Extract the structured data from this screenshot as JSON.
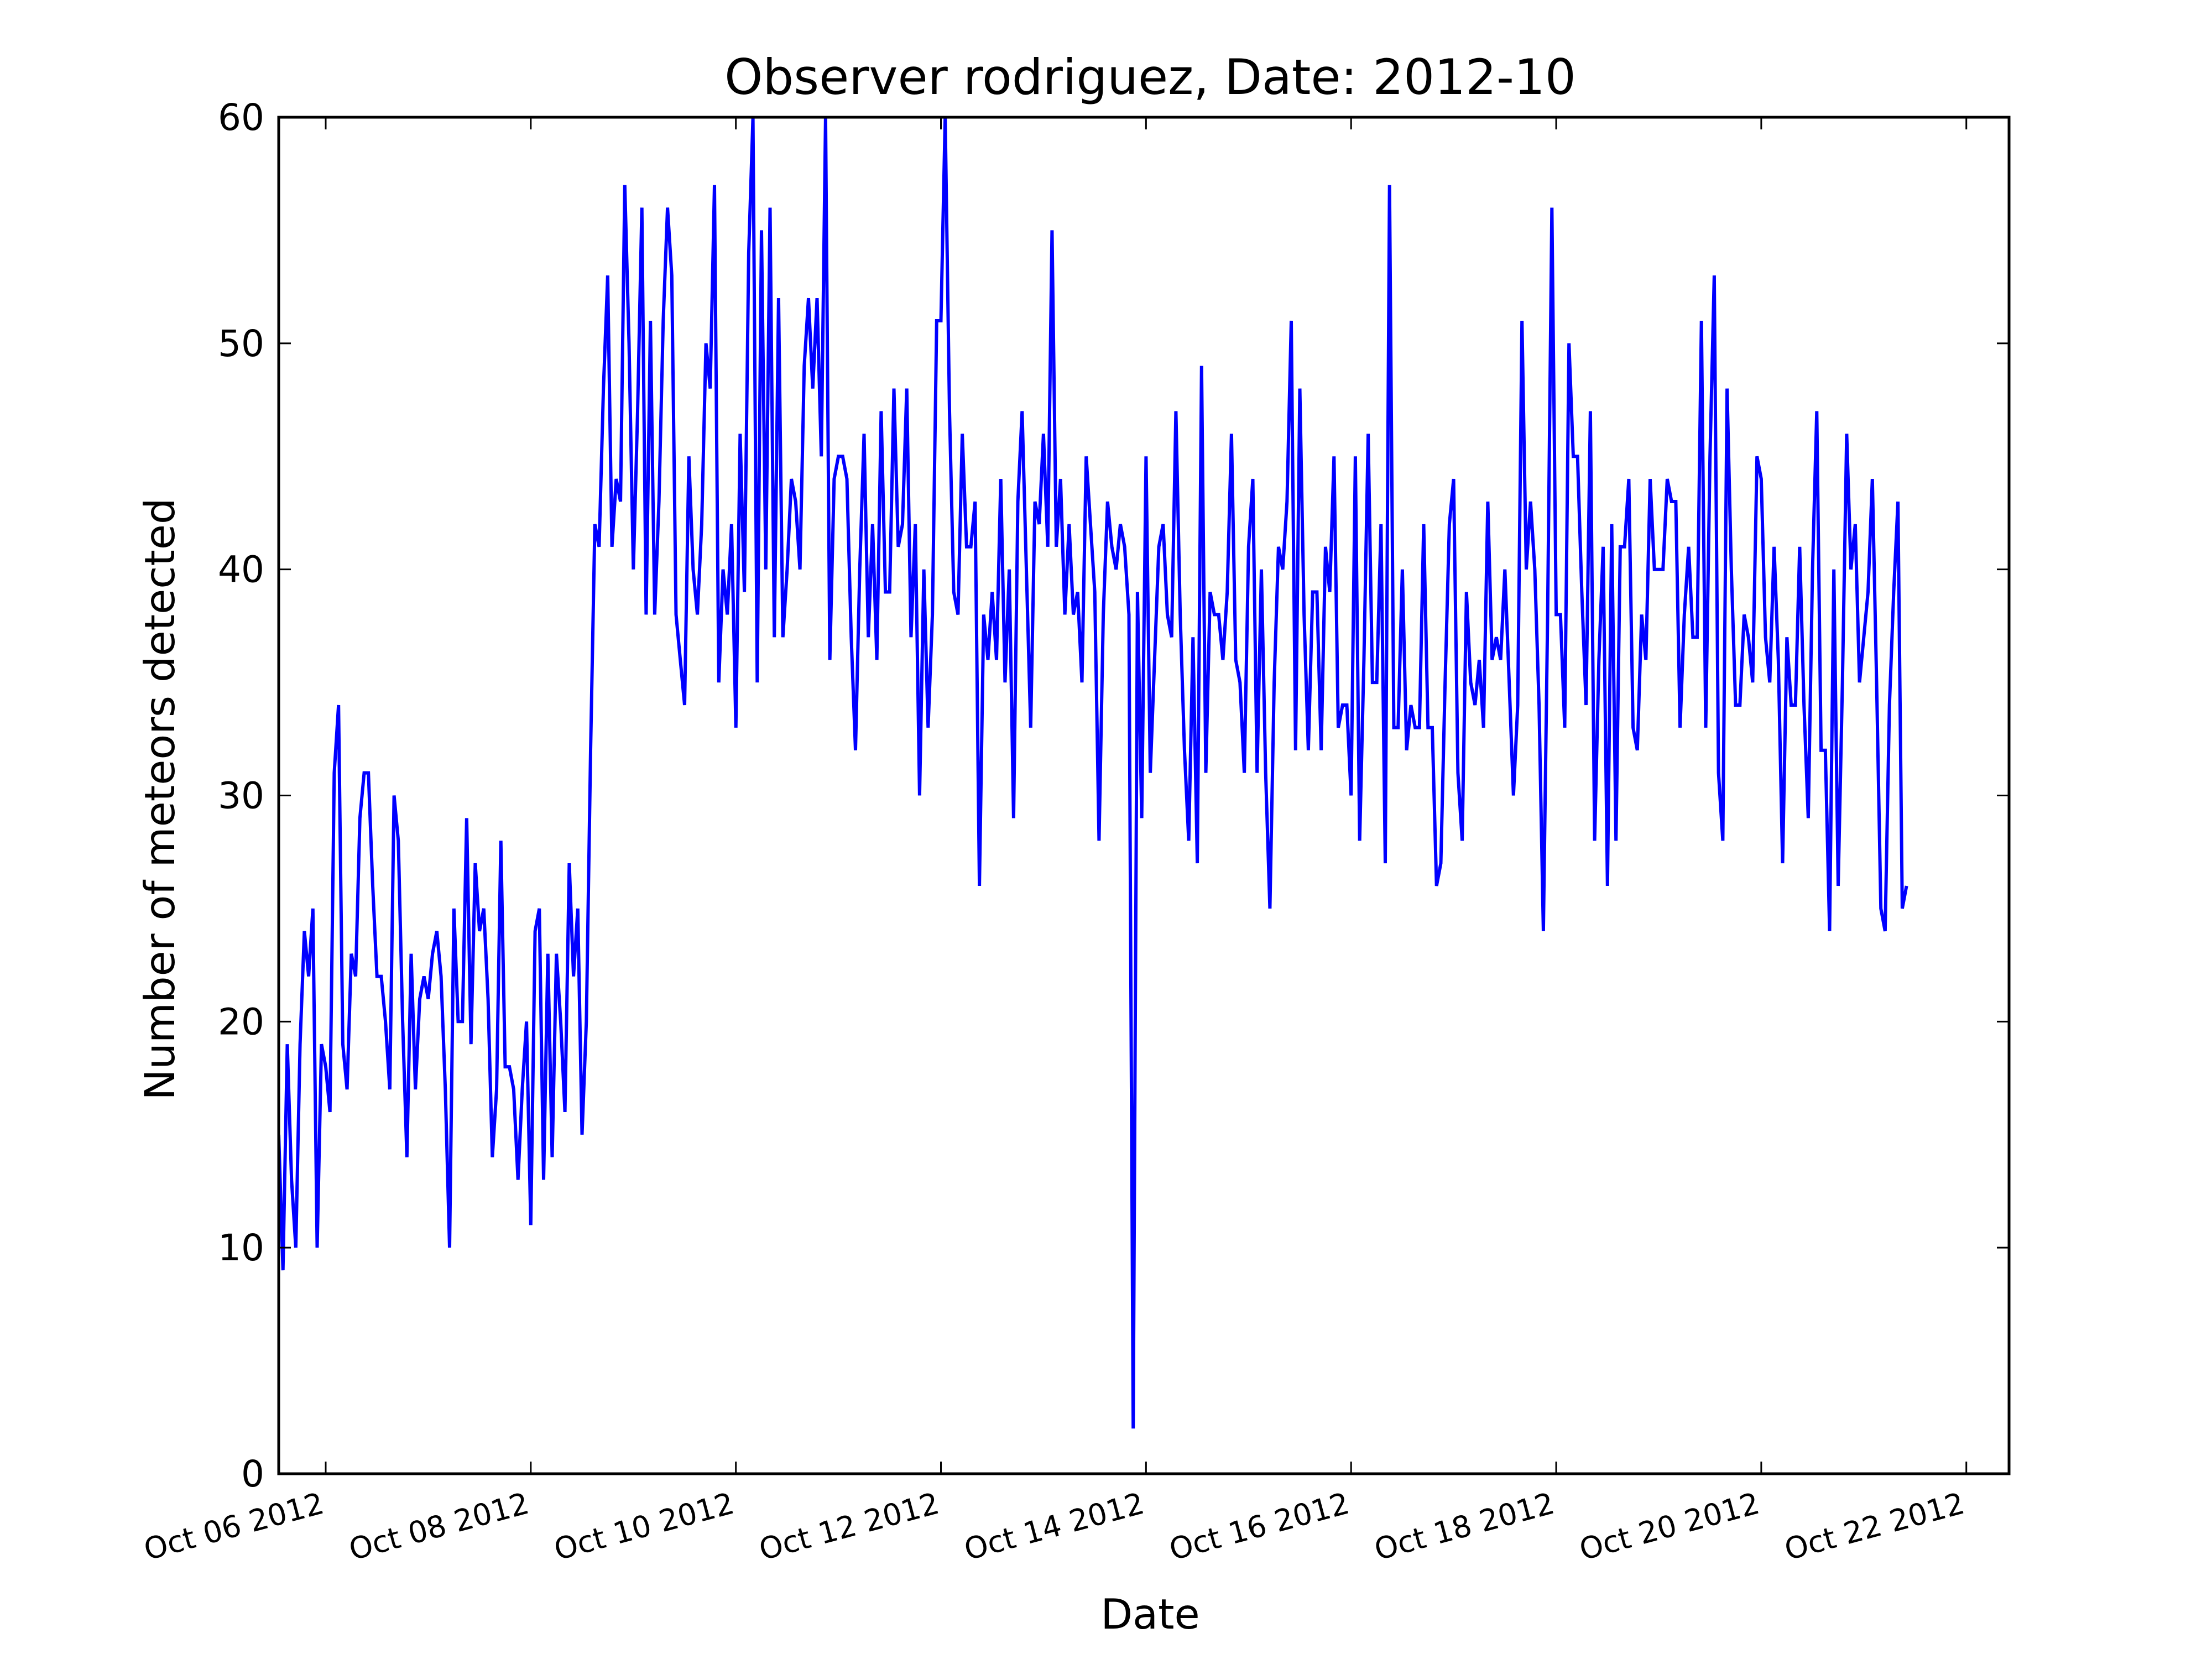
{
  "chart_data": {
    "type": "line",
    "title": "Observer rodriguez, Date: 2012-10",
    "xlabel": "Date",
    "ylabel": "Number of meteors detected",
    "ylim": [
      0,
      60
    ],
    "xlim": [
      "2012-10-05T13:00",
      "2012-10-22T10:00"
    ],
    "yticks": [
      0,
      10,
      20,
      30,
      40,
      50,
      60
    ],
    "xticks": [
      {
        "label": "Oct 06 2012",
        "date": "2012-10-06T00:00"
      },
      {
        "label": "Oct 08 2012",
        "date": "2012-10-08T00:00"
      },
      {
        "label": "Oct 10 2012",
        "date": "2012-10-10T00:00"
      },
      {
        "label": "Oct 12 2012",
        "date": "2012-10-12T00:00"
      },
      {
        "label": "Oct 14 2012",
        "date": "2012-10-14T00:00"
      },
      {
        "label": "Oct 16 2012",
        "date": "2012-10-16T00:00"
      },
      {
        "label": "Oct 18 2012",
        "date": "2012-10-18T00:00"
      },
      {
        "label": "Oct 20 2012",
        "date": "2012-10-20T00:00"
      },
      {
        "label": "Oct 22 2012",
        "date": "2012-10-22T00:00"
      }
    ],
    "grid": false,
    "line_color": "#0000ff",
    "series": [
      {
        "x_start": "2012-10-05T13:00",
        "x_step_hours": 1,
        "y": [
          15,
          9,
          19,
          13,
          10,
          19,
          24,
          22,
          25,
          10,
          19,
          18,
          16,
          31,
          34,
          19,
          17,
          23,
          22,
          29,
          31,
          31,
          26,
          22,
          22,
          20,
          17,
          30,
          28,
          20,
          14,
          23,
          17,
          21,
          22,
          21,
          23,
          24,
          22,
          17,
          10,
          25,
          20,
          20,
          29,
          19,
          27,
          24,
          25,
          21,
          14,
          17,
          28,
          18,
          18,
          17,
          13,
          17,
          20,
          11,
          24,
          25,
          13,
          23,
          14,
          23,
          20,
          16,
          27,
          22,
          25,
          15,
          20,
          32,
          42,
          41,
          48,
          53,
          41,
          44,
          43,
          57,
          50,
          40,
          47,
          56,
          38,
          51,
          38,
          43,
          51,
          56,
          53,
          38,
          36,
          34,
          45,
          40,
          38,
          42,
          50,
          48,
          57,
          35,
          40,
          38,
          42,
          33,
          46,
          39,
          54,
          60,
          35,
          55,
          40,
          56,
          37,
          52,
          37,
          40,
          44,
          43,
          40,
          49,
          52,
          48,
          52,
          45,
          60,
          36,
          44,
          45,
          45,
          44,
          37,
          32,
          40,
          46,
          37,
          42,
          36,
          47,
          39,
          39,
          48,
          41,
          42,
          48,
          37,
          42,
          30,
          40,
          33,
          38,
          51,
          51,
          60,
          47,
          39,
          38,
          46,
          41,
          41,
          43,
          26,
          38,
          36,
          39,
          36,
          44,
          35,
          40,
          29,
          43,
          47,
          40,
          33,
          43,
          42,
          46,
          41,
          55,
          41,
          44,
          38,
          42,
          38,
          39,
          35,
          45,
          42,
          39,
          28,
          38,
          43,
          41,
          40,
          42,
          41,
          38,
          2,
          39,
          29,
          45,
          31,
          36,
          41,
          42,
          38,
          37,
          47,
          38,
          32,
          28,
          37,
          27,
          49,
          31,
          39,
          38,
          38,
          36,
          39,
          46,
          36,
          35,
          31,
          41,
          44,
          31,
          40,
          31,
          25,
          35,
          41,
          40,
          43,
          51,
          32,
          48,
          38,
          32,
          39,
          39,
          32,
          41,
          39,
          45,
          33,
          34,
          34,
          30,
          45,
          28,
          36,
          46,
          35,
          35,
          42,
          27,
          57,
          33,
          33,
          40,
          32,
          34,
          33,
          33,
          42,
          33,
          33,
          26,
          27,
          35,
          42,
          44,
          31,
          28,
          39,
          35,
          34,
          36,
          33,
          43,
          36,
          37,
          36,
          40,
          35,
          30,
          34,
          51,
          40,
          43,
          40,
          34,
          24,
          38,
          56,
          38,
          38,
          33,
          50,
          45,
          45,
          39,
          34,
          47,
          28,
          36,
          41,
          26,
          42,
          28,
          41,
          41,
          44,
          33,
          32,
          38,
          36,
          44,
          40,
          40,
          40,
          44,
          43,
          43,
          33,
          38,
          41,
          37,
          37,
          51,
          33,
          45,
          53,
          31,
          28,
          48,
          40,
          34,
          34,
          38,
          37,
          35,
          45,
          44,
          37,
          35,
          41,
          36,
          27,
          37,
          34,
          34,
          41,
          34,
          29,
          40,
          47,
          32,
          32,
          24,
          40,
          26,
          35,
          46,
          40,
          42,
          35,
          37,
          39,
          44,
          35,
          25,
          24,
          34,
          39,
          43,
          25,
          26
        ]
      }
    ]
  }
}
